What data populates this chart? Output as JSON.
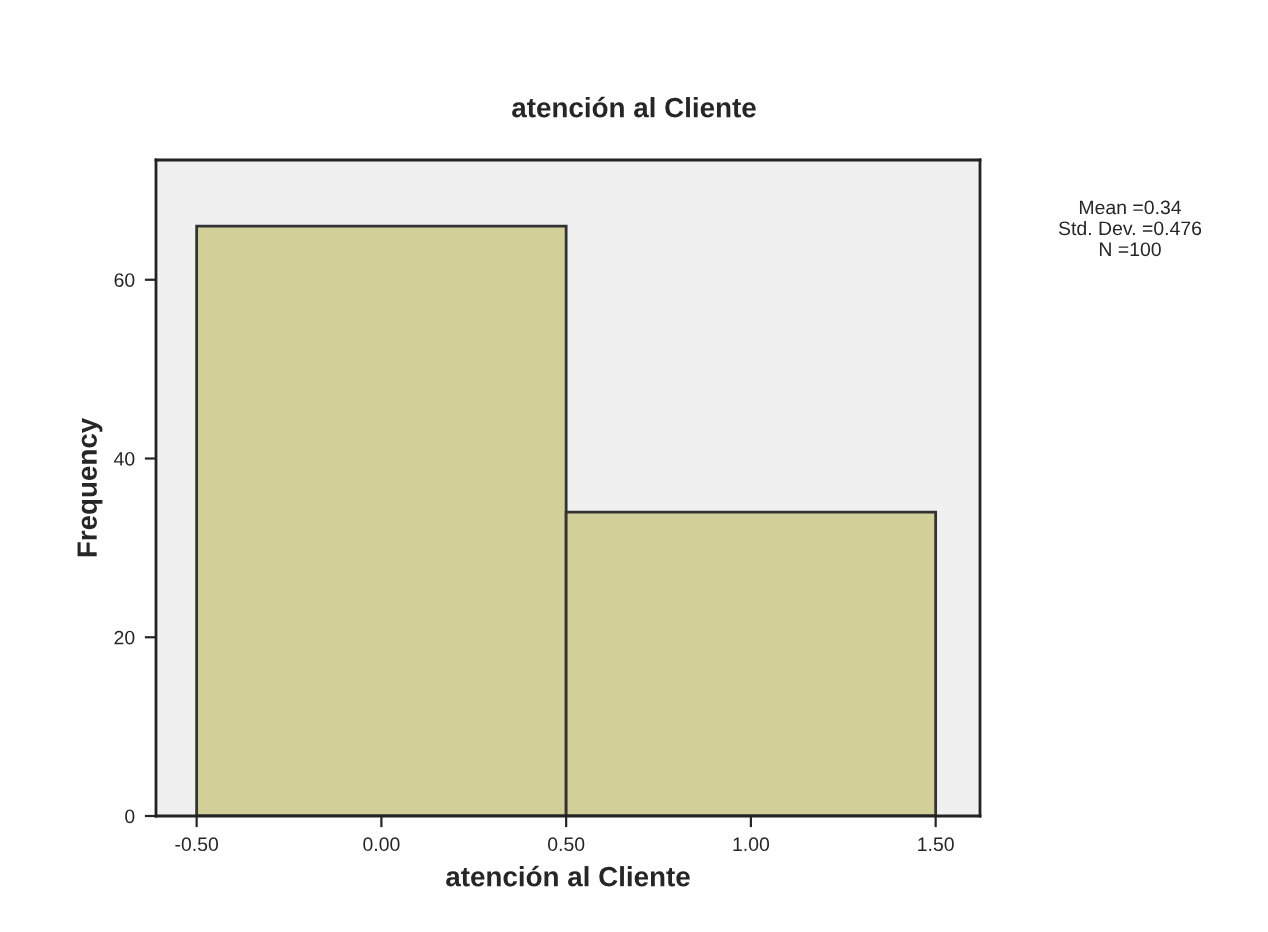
{
  "chart_data": {
    "type": "histogram",
    "title": "atención al Cliente",
    "xlabel": "atención al Cliente",
    "ylabel": "Frequency",
    "bins": [
      -0.5,
      0.5,
      1.5
    ],
    "values": [
      66,
      34
    ],
    "color": "#d3cf98",
    "xlim": [
      -0.61,
      1.62
    ],
    "ylim": [
      0,
      73.4
    ],
    "xticks": [
      {
        "value": -0.5,
        "label": "-0.50"
      },
      {
        "value": 0,
        "label": "0.00"
      },
      {
        "value": 0.5,
        "label": "0.50"
      },
      {
        "value": 1,
        "label": "1.00"
      },
      {
        "value": 1.5,
        "label": "1.50"
      }
    ],
    "yticks": [
      0,
      20,
      40,
      60
    ],
    "annotations": [
      "Mean =0.34\nStd. Dev. =0.476\nN =100"
    ]
  }
}
